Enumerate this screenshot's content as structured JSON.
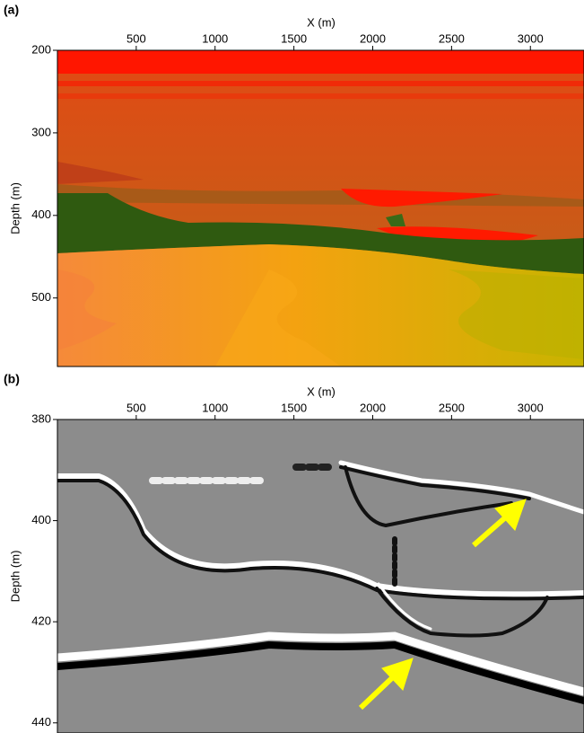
{
  "chart_data": [
    {
      "type": "image",
      "label": "(a)",
      "x_label": "X (m)",
      "y_label": "Depth (m)",
      "xlim": [
        0,
        3340
      ],
      "ylim": [
        200,
        583
      ],
      "xticks": [
        500,
        1000,
        1500,
        2000,
        2500,
        3000
      ],
      "yticks": [
        200,
        300,
        400,
        500
      ]
    },
    {
      "type": "image",
      "label": "(b)",
      "x_label": "X (m)",
      "y_label": "Depth (m)",
      "xlim": [
        0,
        3340
      ],
      "ylim": [
        380,
        442
      ],
      "xticks": [
        500,
        1000,
        1500,
        2000,
        2500,
        3000
      ],
      "yticks": [
        380,
        400,
        420,
        440
      ]
    }
  ]
}
